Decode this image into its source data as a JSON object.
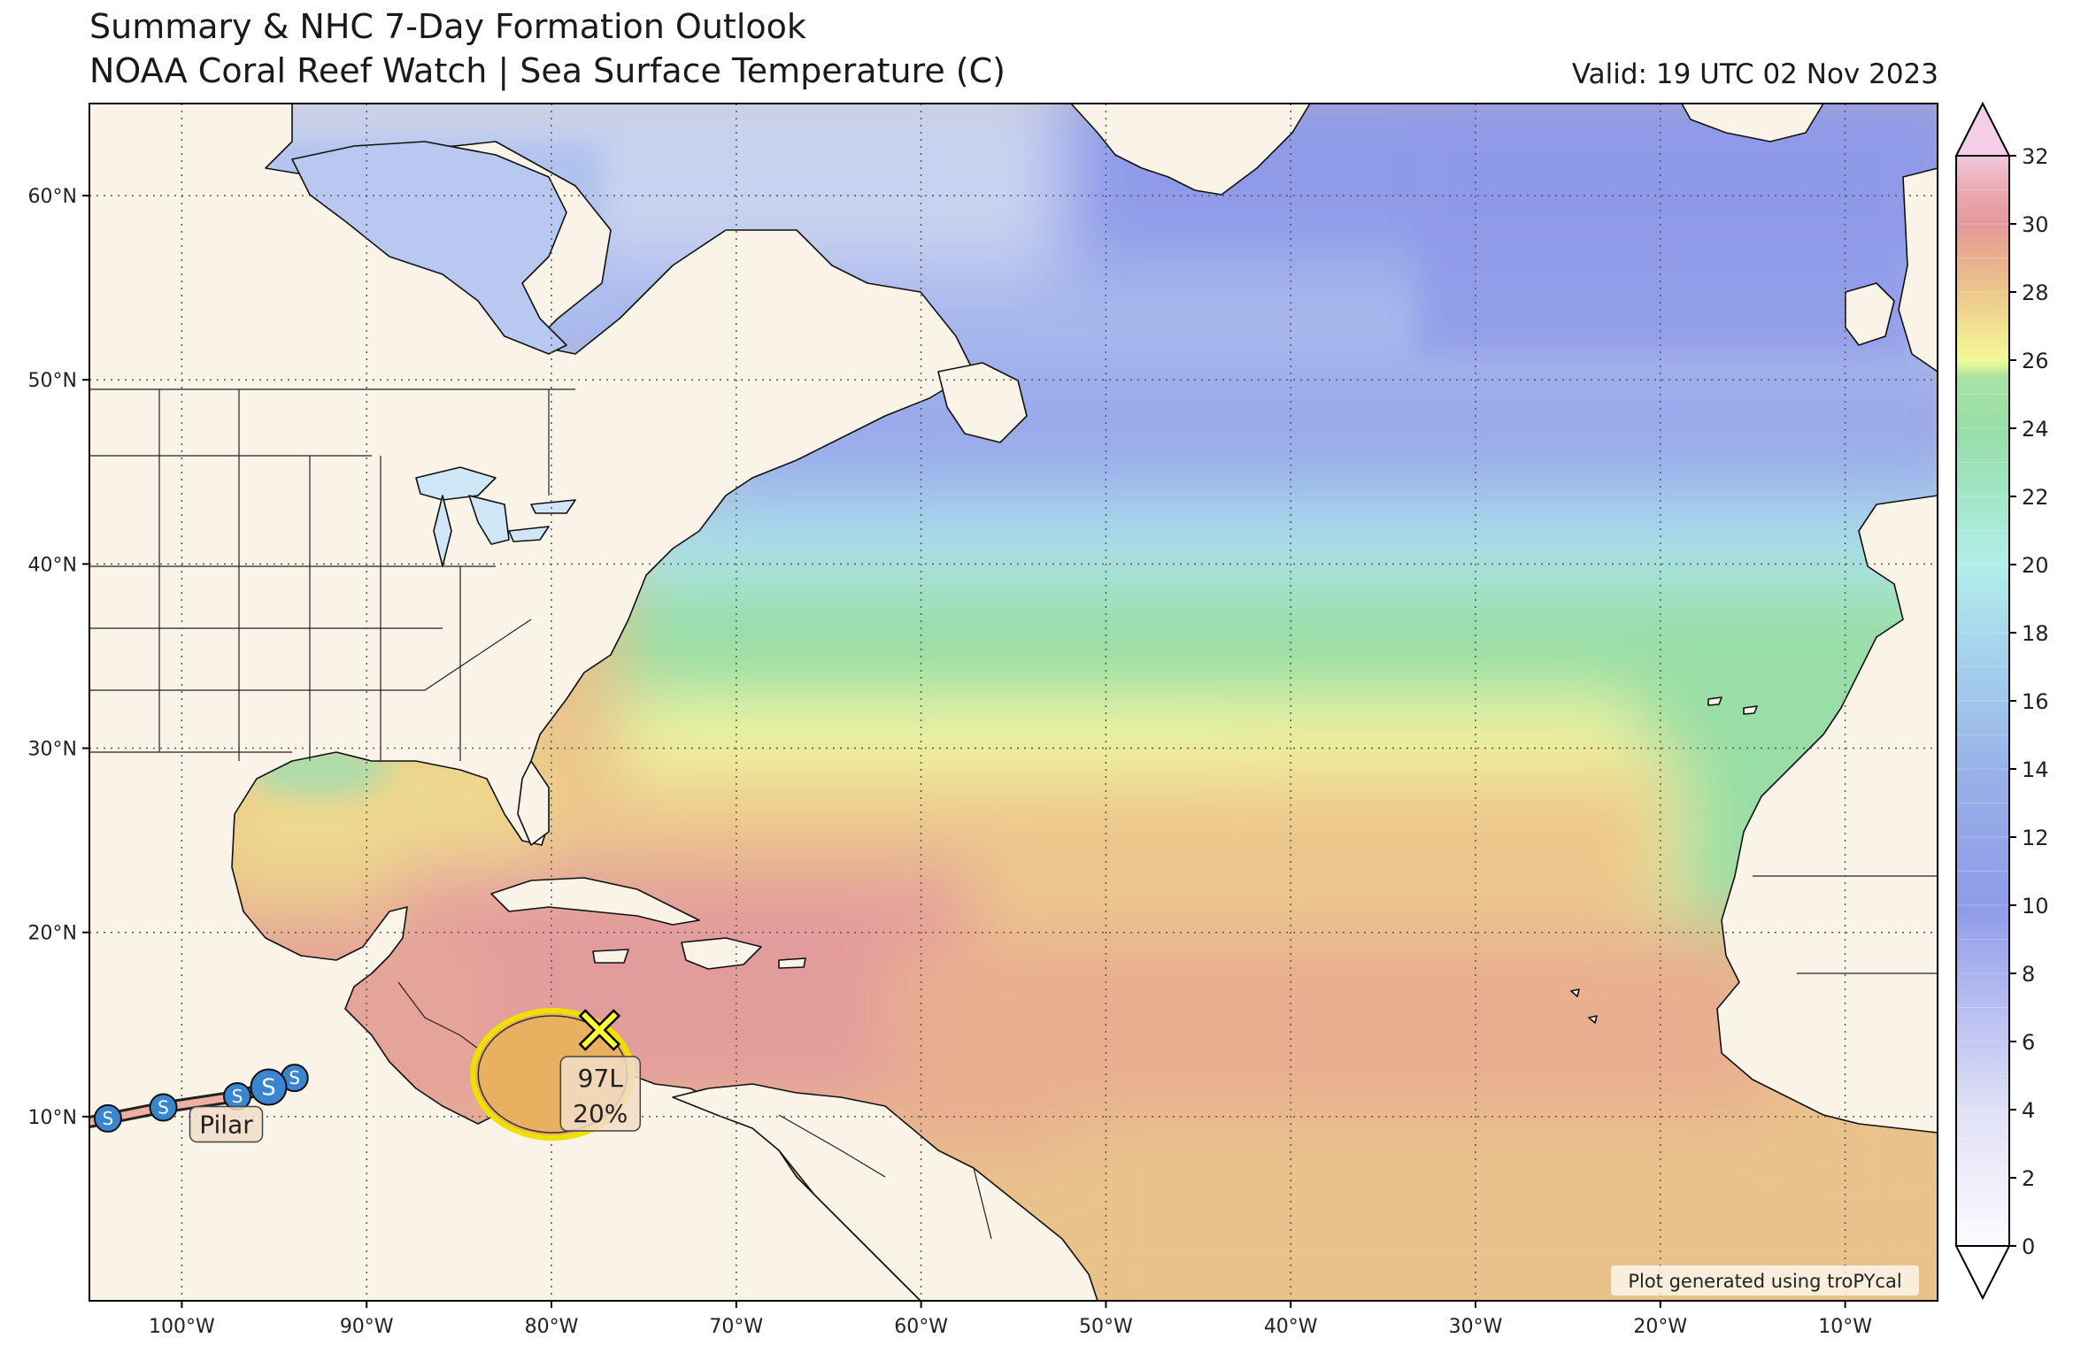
{
  "header": {
    "title_line1": "Summary & NHC 7-Day Formation Outlook",
    "title_line2": "NOAA Coral Reef Watch | Sea Surface Temperature (C)",
    "valid": "Valid: 19 UTC 02 Nov 2023"
  },
  "map": {
    "projection": "plate-carree",
    "lon_range": [
      -105,
      -5
    ],
    "lat_range": [
      0,
      65
    ],
    "lat_ticks": [
      {
        "value": 10,
        "label": "10°N"
      },
      {
        "value": 20,
        "label": "20°N"
      },
      {
        "value": 30,
        "label": "30°N"
      },
      {
        "value": 40,
        "label": "40°N"
      },
      {
        "value": 50,
        "label": "50°N"
      },
      {
        "value": 60,
        "label": "60°N"
      }
    ],
    "lon_ticks": [
      {
        "value": -100,
        "label": "100°W"
      },
      {
        "value": -90,
        "label": "90°W"
      },
      {
        "value": -80,
        "label": "80°W"
      },
      {
        "value": -70,
        "label": "70°W"
      },
      {
        "value": -60,
        "label": "60°W"
      },
      {
        "value": -50,
        "label": "50°W"
      },
      {
        "value": -40,
        "label": "40°W"
      },
      {
        "value": -30,
        "label": "30°W"
      },
      {
        "value": -20,
        "label": "20°W"
      },
      {
        "value": -10,
        "label": "10°W"
      }
    ],
    "gridlines": true,
    "land_color": "#faf3e8",
    "credit": "Plot generated using troPYcal"
  },
  "colorbar": {
    "min": 0,
    "max": 32,
    "extend": "both",
    "tick_values": [
      0,
      2,
      4,
      6,
      8,
      10,
      12,
      14,
      16,
      18,
      20,
      22,
      24,
      26,
      28,
      30,
      32
    ],
    "tick_labels": [
      "0",
      "2",
      "4",
      "6",
      "8",
      "10",
      "12",
      "14",
      "16",
      "18",
      "20",
      "22",
      "24",
      "26",
      "28",
      "30",
      "32"
    ],
    "stops": [
      {
        "value": 0,
        "color": "#fbfbff"
      },
      {
        "value": 4,
        "color": "#e0e0f6"
      },
      {
        "value": 8,
        "color": "#aab2ee"
      },
      {
        "value": 10,
        "color": "#8f9be9"
      },
      {
        "value": 14,
        "color": "#98b2e8"
      },
      {
        "value": 16,
        "color": "#a0c6ec"
      },
      {
        "value": 18,
        "color": "#a8d8ec"
      },
      {
        "value": 20,
        "color": "#b2eeea"
      },
      {
        "value": 22,
        "color": "#a2e6c8"
      },
      {
        "value": 24,
        "color": "#98dea6"
      },
      {
        "value": 25.5,
        "color": "#a8e2a4"
      },
      {
        "value": 26,
        "color": "#f2fa96"
      },
      {
        "value": 27,
        "color": "#f2df90"
      },
      {
        "value": 28,
        "color": "#ecc68c"
      },
      {
        "value": 29,
        "color": "#e9af8e"
      },
      {
        "value": 30,
        "color": "#e4999a"
      },
      {
        "value": 31,
        "color": "#eaaab2"
      },
      {
        "value": 32,
        "color": "#f0c8dc"
      }
    ],
    "over_color": "#f4cde6",
    "under_color": "#ffffff"
  },
  "outlook": {
    "name": "97L",
    "probability": "20%",
    "center_lon": -77.4,
    "center_lat": 14.7,
    "area_color": "#e8b060",
    "outline_color": "#f0e000",
    "marker_color": "#ffff33"
  },
  "storm": {
    "name": "Pilar",
    "symbol": "S",
    "marker_color": "#3a85d0",
    "track": [
      {
        "lon": -104.0,
        "lat": 9.9,
        "size": "small"
      },
      {
        "lon": -101.0,
        "lat": 10.5,
        "size": "small"
      },
      {
        "lon": -97.0,
        "lat": 11.1,
        "size": "small"
      },
      {
        "lon": -95.3,
        "lat": 11.6,
        "size": "large"
      },
      {
        "lon": -93.9,
        "lat": 12.1,
        "size": "small"
      }
    ]
  }
}
